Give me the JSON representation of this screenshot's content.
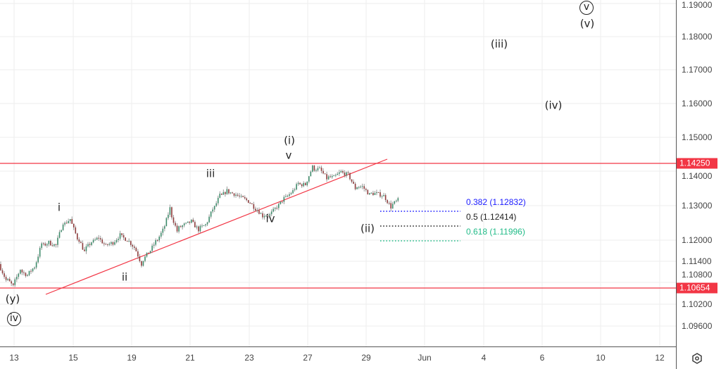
{
  "chart_data": {
    "type": "candlestick",
    "title": "",
    "y_ticks": [
      "1.19000",
      "1.18000",
      "1.17000",
      "1.16000",
      "1.15000",
      "1.14000",
      "1.13000",
      "1.12000",
      "1.11400",
      "1.10800",
      "1.10200",
      "1.09600"
    ],
    "x_ticks": [
      "13",
      "15",
      "19",
      "21",
      "23",
      "27",
      "29",
      "Jun",
      "4",
      "6",
      "10",
      "12"
    ],
    "price_path": [
      1.1132,
      1.1092,
      1.1072,
      1.1112,
      1.1102,
      1.1122,
      1.1182,
      1.1192,
      1.1186,
      1.1243,
      1.1259,
      1.1212,
      1.1172,
      1.1192,
      1.1206,
      1.1186,
      1.1192,
      1.1212,
      1.1202,
      1.1182,
      1.1138,
      1.1162,
      1.1192,
      1.1224,
      1.1284,
      1.1233,
      1.1243,
      1.1253,
      1.1233,
      1.1243,
      1.1284,
      1.1324,
      1.1341,
      1.1335,
      1.1324,
      1.1314,
      1.1294,
      1.1273,
      1.1273,
      1.1294,
      1.1318,
      1.1335,
      1.1361,
      1.1361,
      1.1406,
      1.1406,
      1.1382,
      1.1382,
      1.1396,
      1.139,
      1.1355,
      1.1355,
      1.1335,
      1.1335,
      1.1329,
      1.13,
      1.1314
    ],
    "horizontal_levels": [
      {
        "price": 1.1425,
        "label": "1.14250",
        "color": "#f23645"
      },
      {
        "price": 1.10654,
        "label": "1.10654",
        "color": "#f23645"
      }
    ],
    "trendline": {
      "from_price": 1.105,
      "to_price": 1.144,
      "color": "#f23645"
    },
    "fibonacci": [
      {
        "label": "0.382 (1.12832)",
        "color": "#1a1aff"
      },
      {
        "label": "0.5 (1.12414)",
        "color": "#222222"
      },
      {
        "label": "0.618 (1.11996)",
        "color": "#22bb88"
      }
    ],
    "wave_labels": {
      "y": "(y)",
      "iv_circ": "iv",
      "i": "i",
      "ii": "ii",
      "iii": "iii",
      "iv": "iv",
      "v": "v",
      "w_i": "(i)",
      "w_ii": "(ii)",
      "w_iii": "(iii)",
      "w_iv": "(iv)",
      "v_circ": "v",
      "w_v": "(v)"
    },
    "colors": {
      "up": "#3d8b6a",
      "down": "#8e3b3b",
      "grid": "#eeeeee"
    }
  }
}
